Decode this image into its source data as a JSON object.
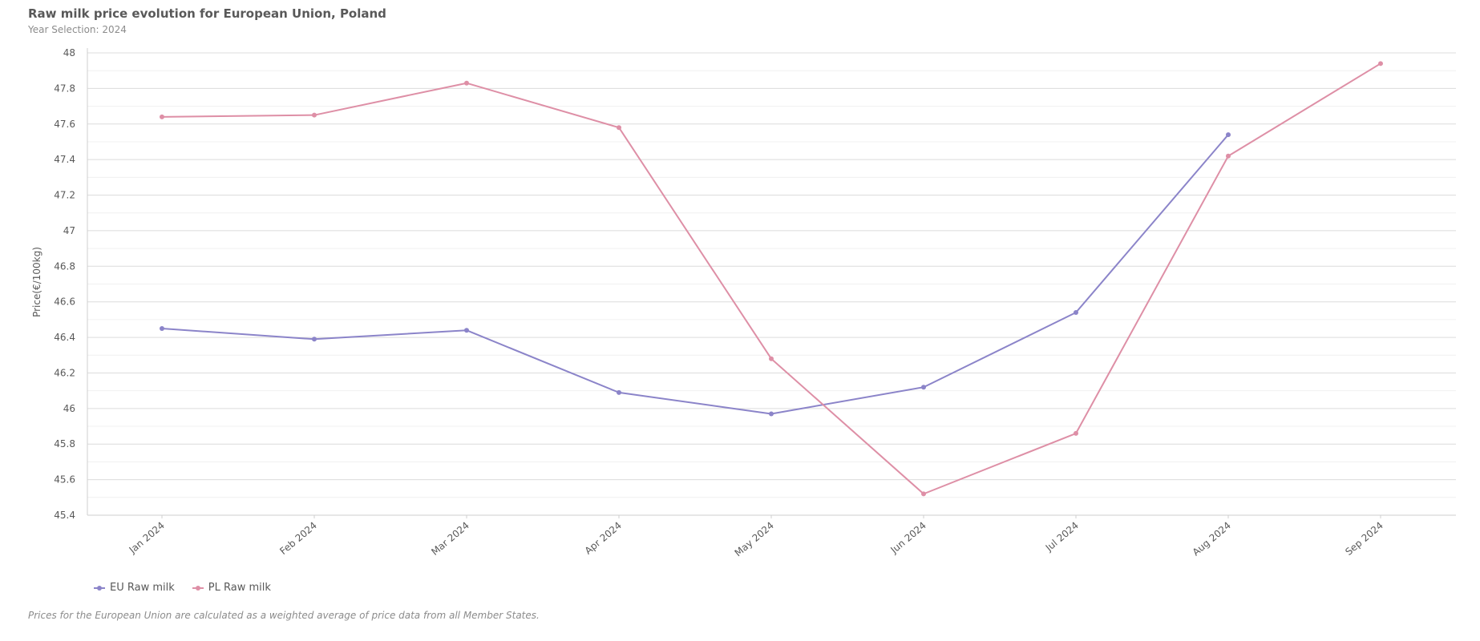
{
  "chart_data": {
    "type": "line",
    "title": "Raw milk price evolution for European Union, Poland",
    "subtitle": "Year Selection: 2024",
    "ylabel": "Price(€/100kg)",
    "xlabel": "",
    "categories": [
      "Jan 2024",
      "Feb 2024",
      "Mar 2024",
      "Apr 2024",
      "May 2024",
      "Jun 2024",
      "Jul 2024",
      "Aug 2024",
      "Sep 2024"
    ],
    "ylim": [
      45.4,
      48
    ],
    "yticks": [
      "45.4",
      "45.6",
      "45.8",
      "46",
      "46.2",
      "46.4",
      "46.6",
      "46.8",
      "47",
      "47.2",
      "47.4",
      "47.6",
      "47.8",
      "48"
    ],
    "grid": true,
    "legend_position": "bottom-left",
    "series": [
      {
        "name": "EU Raw milk",
        "color": "#8b84c9",
        "values": [
          46.45,
          46.39,
          46.44,
          46.09,
          45.97,
          46.12,
          46.54,
          47.54,
          null
        ]
      },
      {
        "name": "PL Raw milk",
        "color": "#de8fa6",
        "values": [
          47.64,
          47.65,
          47.83,
          47.58,
          46.28,
          45.52,
          45.86,
          47.42,
          47.94
        ]
      }
    ],
    "footnote": "Prices for the European Union are calculated as a weighted average of price data from all Member States."
  }
}
